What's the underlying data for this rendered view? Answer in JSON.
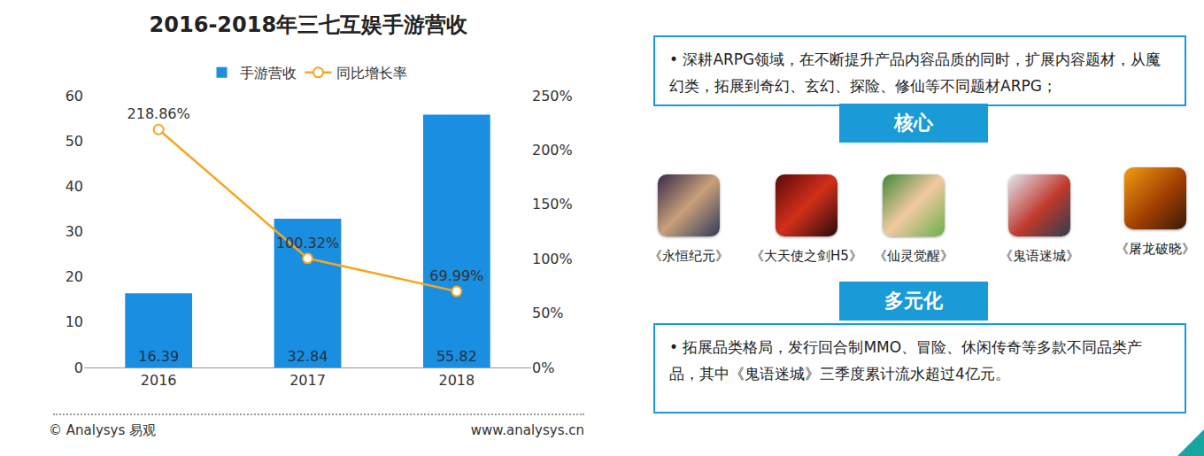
{
  "chart_data": {
    "type": "bar",
    "title": "2016-2018年三七互娱手游营收",
    "categories": [
      "2016",
      "2017",
      "2018"
    ],
    "series": [
      {
        "name": "手游营收",
        "type": "bar",
        "color": "#1a8ee0",
        "values": [
          16.39,
          32.84,
          55.82
        ]
      },
      {
        "name": "同比增长率",
        "type": "line",
        "color": "#f5a623",
        "axis": "y2",
        "marker": "circle",
        "values": [
          218.86,
          100.32,
          69.99
        ],
        "value_labels": [
          "218.86%",
          "100.32%",
          "69.99%"
        ]
      }
    ],
    "ylim": [
      0,
      60
    ],
    "yticks": [
      0,
      10,
      20,
      30,
      40,
      50,
      60
    ],
    "y2lim": [
      0,
      250
    ],
    "y2ticks": [
      {
        "value": 0,
        "label": "0%"
      },
      {
        "value": 50,
        "label": "50%"
      },
      {
        "value": 100,
        "label": "100%"
      },
      {
        "value": 150,
        "label": "150%"
      },
      {
        "value": 200,
        "label": "200%"
      },
      {
        "value": 250,
        "label": "250%"
      }
    ],
    "data_labels": true,
    "legend": "top",
    "grid": false
  },
  "panel": {
    "intro": "• 深耕ARPG领域，在不断提升产品内容品质的同时，扩展内容题材，从魔幻类，拓展到奇幻、玄幻、探险、修仙等不同题材ARPG；",
    "core_heading": "核心",
    "core_games": [
      "《永恒纪元》",
      "《大天使之剑H5》",
      "《仙灵觉醒》",
      "《鬼语迷城》",
      "《屠龙破晓》"
    ],
    "diversified_heading": "多元化",
    "diversified_text": "• 拓展品类格局，发行回合制MMO、冒险、休闲传奇等多款不同品类产品，其中《鬼语迷城》三季度累计流水超过4亿元。"
  },
  "footer": {
    "copyright": "© Analysys 易观",
    "url": "www.analysys.cn"
  }
}
